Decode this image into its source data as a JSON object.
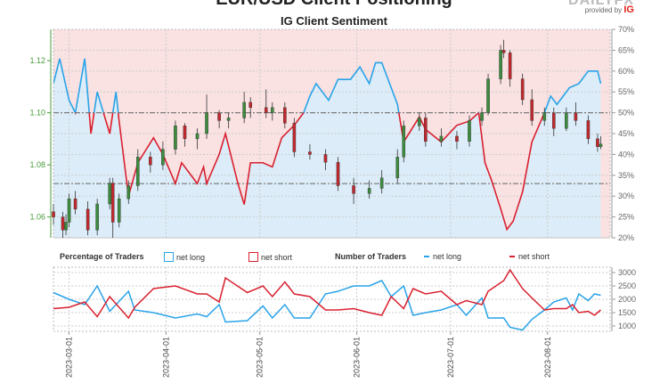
{
  "header": {
    "title": "EUR/USD Client Positioning",
    "subtitle": "IG Client Sentiment",
    "logo": "DAILYFX",
    "provided_by": "provided by",
    "provider": "IG"
  },
  "legend": {
    "pct_title": "Percentage of Traders",
    "pct_long": "net long",
    "pct_short": "net short",
    "num_title": "Number of Traders",
    "num_long": "net long",
    "num_short": "net short"
  },
  "colors": {
    "long": "#29a3e8",
    "short": "#d9202e",
    "long_fill": "#dcedf9",
    "short_fill": "#fae1e2",
    "up": "#3d8b3d",
    "down": "#c0282d",
    "price_axis": "#4a9a3a"
  },
  "chart_data": [
    {
      "type": "candlestick+area",
      "title": "IG Client Sentiment",
      "x_range": [
        "2023-02-24",
        "2023-08-21"
      ],
      "x_ticks": [
        "2023-03-01",
        "2023-04-01",
        "2023-05-01",
        "2023-06-01",
        "2023-07-01",
        "2023-08-01"
      ],
      "y_left": {
        "range": [
          1.052,
          1.132
        ],
        "ticks": [
          "1.06",
          "1.08",
          "1.10",
          "1.12"
        ]
      },
      "y_right": {
        "range": [
          20,
          70
        ],
        "ticks": [
          "20%",
          "25%",
          "30%",
          "35%",
          "40%",
          "45%",
          "50%",
          "55%",
          "60%",
          "65%",
          "70%"
        ]
      },
      "reference_levels_pct": [
        50,
        33
      ],
      "candles": [
        [
          "2023-02-24",
          1.062,
          1.065,
          1.057,
          1.06
        ],
        [
          "2023-02-27",
          1.06,
          1.062,
          1.052,
          1.055
        ],
        [
          "2023-02-28",
          1.055,
          1.061,
          1.053,
          1.058
        ],
        [
          "2023-03-01",
          1.058,
          1.069,
          1.056,
          1.067
        ],
        [
          "2023-03-03",
          1.067,
          1.07,
          1.061,
          1.063
        ],
        [
          "2023-03-07",
          1.063,
          1.066,
          1.053,
          1.055
        ],
        [
          "2023-03-10",
          1.055,
          1.067,
          1.053,
          1.065
        ],
        [
          "2023-03-14",
          1.065,
          1.075,
          1.063,
          1.073
        ],
        [
          "2023-03-15",
          1.073,
          1.075,
          1.052,
          1.058
        ],
        [
          "2023-03-17",
          1.058,
          1.069,
          1.056,
          1.067
        ],
        [
          "2023-03-20",
          1.067,
          1.074,
          1.065,
          1.072
        ],
        [
          "2023-03-23",
          1.072,
          1.086,
          1.07,
          1.083
        ],
        [
          "2023-03-27",
          1.083,
          1.085,
          1.077,
          1.08
        ],
        [
          "2023-03-31",
          1.08,
          1.089,
          1.078,
          1.086
        ],
        [
          "2023-04-04",
          1.086,
          1.097,
          1.084,
          1.095
        ],
        [
          "2023-04-07",
          1.095,
          1.096,
          1.087,
          1.09
        ],
        [
          "2023-04-11",
          1.09,
          1.094,
          1.086,
          1.092
        ],
        [
          "2023-04-14",
          1.092,
          1.107,
          1.09,
          1.1
        ],
        [
          "2023-04-18",
          1.1,
          1.101,
          1.094,
          1.097
        ],
        [
          "2023-04-21",
          1.097,
          1.1,
          1.094,
          1.098
        ],
        [
          "2023-04-26",
          1.098,
          1.108,
          1.096,
          1.104
        ],
        [
          "2023-04-28",
          1.104,
          1.106,
          1.098,
          1.102
        ],
        [
          "2023-05-03",
          1.102,
          1.109,
          1.098,
          1.1
        ],
        [
          "2023-05-05",
          1.1,
          1.104,
          1.097,
          1.102
        ],
        [
          "2023-05-09",
          1.102,
          1.104,
          1.094,
          1.096
        ],
        [
          "2023-05-12",
          1.096,
          1.098,
          1.083,
          1.085
        ],
        [
          "2023-05-17",
          1.085,
          1.088,
          1.082,
          1.084
        ],
        [
          "2023-05-22",
          1.084,
          1.086,
          1.078,
          1.081
        ],
        [
          "2023-05-26",
          1.081,
          1.083,
          1.07,
          1.072
        ],
        [
          "2023-05-31",
          1.072,
          1.075,
          1.065,
          1.069
        ],
        [
          "2023-06-05",
          1.069,
          1.074,
          1.067,
          1.071
        ],
        [
          "2023-06-09",
          1.071,
          1.078,
          1.069,
          1.075
        ],
        [
          "2023-06-14",
          1.075,
          1.086,
          1.073,
          1.083
        ],
        [
          "2023-06-16",
          1.083,
          1.097,
          1.081,
          1.095
        ],
        [
          "2023-06-21",
          1.095,
          1.1,
          1.093,
          1.098
        ],
        [
          "2023-06-23",
          1.098,
          1.1,
          1.087,
          1.089
        ],
        [
          "2023-06-28",
          1.089,
          1.094,
          1.087,
          1.091
        ],
        [
          "2023-07-03",
          1.091,
          1.093,
          1.086,
          1.089
        ],
        [
          "2023-07-07",
          1.089,
          1.099,
          1.087,
          1.097
        ],
        [
          "2023-07-11",
          1.097,
          1.102,
          1.095,
          1.1
        ],
        [
          "2023-07-13",
          1.1,
          1.115,
          1.099,
          1.113
        ],
        [
          "2023-07-17",
          1.113,
          1.126,
          1.111,
          1.124
        ],
        [
          "2023-07-18",
          1.124,
          1.128,
          1.121,
          1.123
        ],
        [
          "2023-07-20",
          1.123,
          1.124,
          1.11,
          1.113
        ],
        [
          "2023-07-24",
          1.113,
          1.115,
          1.103,
          1.105
        ],
        [
          "2023-07-27",
          1.105,
          1.109,
          1.095,
          1.097
        ],
        [
          "2023-07-31",
          1.097,
          1.102,
          1.095,
          1.1
        ],
        [
          "2023-08-03",
          1.1,
          1.102,
          1.091,
          1.094
        ],
        [
          "2023-08-07",
          1.094,
          1.102,
          1.093,
          1.1
        ],
        [
          "2023-08-10",
          1.1,
          1.104,
          1.095,
          1.097
        ],
        [
          "2023-08-14",
          1.097,
          1.099,
          1.088,
          1.09
        ],
        [
          "2023-08-17",
          1.09,
          1.092,
          1.085,
          1.087
        ],
        [
          "2023-08-18",
          1.087,
          1.091,
          1.086,
          1.088
        ]
      ],
      "pct_long": [
        [
          "2023-02-24",
          57
        ],
        [
          "2023-02-26",
          63
        ],
        [
          "2023-03-01",
          53
        ],
        [
          "2023-03-03",
          50
        ],
        [
          "2023-03-06",
          63
        ],
        [
          "2023-03-08",
          45
        ],
        [
          "2023-03-10",
          55
        ],
        [
          "2023-03-14",
          45
        ],
        [
          "2023-03-16",
          55
        ],
        [
          "2023-03-17",
          48
        ],
        [
          "2023-03-20",
          30
        ],
        [
          "2023-03-23",
          38
        ],
        [
          "2023-03-28",
          44
        ],
        [
          "2023-03-31",
          40
        ],
        [
          "2023-04-04",
          33
        ],
        [
          "2023-04-06",
          38
        ],
        [
          "2023-04-11",
          33
        ],
        [
          "2023-04-13",
          37
        ],
        [
          "2023-04-14",
          33
        ],
        [
          "2023-04-18",
          40
        ],
        [
          "2023-04-20",
          45
        ],
        [
          "2023-04-24",
          33
        ],
        [
          "2023-04-26",
          28
        ],
        [
          "2023-04-28",
          38
        ],
        [
          "2023-05-02",
          38
        ],
        [
          "2023-05-05",
          37
        ],
        [
          "2023-05-08",
          44
        ],
        [
          "2023-05-12",
          47
        ],
        [
          "2023-05-15",
          50
        ],
        [
          "2023-05-17",
          54
        ],
        [
          "2023-05-19",
          57
        ],
        [
          "2023-05-23",
          53
        ],
        [
          "2023-05-26",
          58
        ],
        [
          "2023-05-30",
          58
        ],
        [
          "2023-06-02",
          61
        ],
        [
          "2023-06-05",
          57
        ],
        [
          "2023-06-07",
          62
        ],
        [
          "2023-06-09",
          62
        ],
        [
          "2023-06-14",
          52
        ],
        [
          "2023-06-16",
          43
        ],
        [
          "2023-06-21",
          49
        ],
        [
          "2023-06-23",
          46
        ],
        [
          "2023-06-28",
          43
        ],
        [
          "2023-07-03",
          47
        ],
        [
          "2023-07-07",
          48
        ],
        [
          "2023-07-10",
          50
        ],
        [
          "2023-07-12",
          38
        ],
        [
          "2023-07-14",
          34
        ],
        [
          "2023-07-17",
          27
        ],
        [
          "2023-07-19",
          22
        ],
        [
          "2023-07-21",
          24
        ],
        [
          "2023-07-24",
          31
        ],
        [
          "2023-07-27",
          43
        ],
        [
          "2023-07-31",
          50
        ],
        [
          "2023-08-02",
          54
        ],
        [
          "2023-08-04",
          52
        ],
        [
          "2023-08-08",
          56
        ],
        [
          "2023-08-11",
          57
        ],
        [
          "2023-08-14",
          60
        ],
        [
          "2023-08-17",
          60
        ],
        [
          "2023-08-18",
          57
        ]
      ]
    },
    {
      "type": "line",
      "y_range": [
        800,
        3200
      ],
      "y_ticks": [
        "1000",
        "1500",
        "2000",
        "2500",
        "3000"
      ],
      "series": [
        {
          "name": "net long",
          "values": [
            [
              "2023-02-24",
              2250
            ],
            [
              "2023-03-01",
              2000
            ],
            [
              "2023-03-06",
              1800
            ],
            [
              "2023-03-10",
              2500
            ],
            [
              "2023-03-14",
              1550
            ],
            [
              "2023-03-20",
              2300
            ],
            [
              "2023-03-22",
              1600
            ],
            [
              "2023-03-28",
              1500
            ],
            [
              "2023-04-04",
              1300
            ],
            [
              "2023-04-11",
              1450
            ],
            [
              "2023-04-14",
              1350
            ],
            [
              "2023-04-18",
              1800
            ],
            [
              "2023-04-20",
              1150
            ],
            [
              "2023-04-27",
              1200
            ],
            [
              "2023-05-02",
              1750
            ],
            [
              "2023-05-05",
              1300
            ],
            [
              "2023-05-09",
              1800
            ],
            [
              "2023-05-12",
              1300
            ],
            [
              "2023-05-17",
              1300
            ],
            [
              "2023-05-22",
              2200
            ],
            [
              "2023-05-26",
              2300
            ],
            [
              "2023-05-31",
              2500
            ],
            [
              "2023-06-05",
              2500
            ],
            [
              "2023-06-09",
              2700
            ],
            [
              "2023-06-12",
              2100
            ],
            [
              "2023-06-16",
              2500
            ],
            [
              "2023-06-19",
              1400
            ],
            [
              "2023-06-23",
              1500
            ],
            [
              "2023-06-28",
              1600
            ],
            [
              "2023-07-03",
              1800
            ],
            [
              "2023-07-06",
              1400
            ],
            [
              "2023-07-11",
              2050
            ],
            [
              "2023-07-13",
              1300
            ],
            [
              "2023-07-18",
              1300
            ],
            [
              "2023-07-20",
              950
            ],
            [
              "2023-07-24",
              850
            ],
            [
              "2023-07-27",
              1250
            ],
            [
              "2023-07-31",
              1600
            ],
            [
              "2023-08-03",
              1900
            ],
            [
              "2023-08-07",
              2050
            ],
            [
              "2023-08-09",
              1600
            ],
            [
              "2023-08-11",
              2200
            ],
            [
              "2023-08-14",
              1950
            ],
            [
              "2023-08-16",
              2200
            ],
            [
              "2023-08-18",
              2150
            ]
          ]
        },
        {
          "name": "net short",
          "values": [
            [
              "2023-02-24",
              1650
            ],
            [
              "2023-03-01",
              1700
            ],
            [
              "2023-03-06",
              1900
            ],
            [
              "2023-03-10",
              1350
            ],
            [
              "2023-03-14",
              2100
            ],
            [
              "2023-03-20",
              1300
            ],
            [
              "2023-03-22",
              1700
            ],
            [
              "2023-03-28",
              2400
            ],
            [
              "2023-04-04",
              2500
            ],
            [
              "2023-04-11",
              2200
            ],
            [
              "2023-04-14",
              2200
            ],
            [
              "2023-04-18",
              1900
            ],
            [
              "2023-04-20",
              2800
            ],
            [
              "2023-04-27",
              2250
            ],
            [
              "2023-05-02",
              2500
            ],
            [
              "2023-05-05",
              2100
            ],
            [
              "2023-05-09",
              2650
            ],
            [
              "2023-05-12",
              2200
            ],
            [
              "2023-05-17",
              2100
            ],
            [
              "2023-05-22",
              1600
            ],
            [
              "2023-05-26",
              1600
            ],
            [
              "2023-05-31",
              1650
            ],
            [
              "2023-06-05",
              1500
            ],
            [
              "2023-06-09",
              1400
            ],
            [
              "2023-06-12",
              2100
            ],
            [
              "2023-06-16",
              1650
            ],
            [
              "2023-06-19",
              2400
            ],
            [
              "2023-06-23",
              2200
            ],
            [
              "2023-06-28",
              2300
            ],
            [
              "2023-07-03",
              1800
            ],
            [
              "2023-07-06",
              1950
            ],
            [
              "2023-07-11",
              1800
            ],
            [
              "2023-07-13",
              2300
            ],
            [
              "2023-07-18",
              2700
            ],
            [
              "2023-07-20",
              3100
            ],
            [
              "2023-07-24",
              2400
            ],
            [
              "2023-07-27",
              2050
            ],
            [
              "2023-07-31",
              1600
            ],
            [
              "2023-08-03",
              1650
            ],
            [
              "2023-08-07",
              1650
            ],
            [
              "2023-08-09",
              1800
            ],
            [
              "2023-08-11",
              1500
            ],
            [
              "2023-08-14",
              1550
            ],
            [
              "2023-08-16",
              1400
            ],
            [
              "2023-08-18",
              1600
            ]
          ]
        }
      ]
    }
  ]
}
